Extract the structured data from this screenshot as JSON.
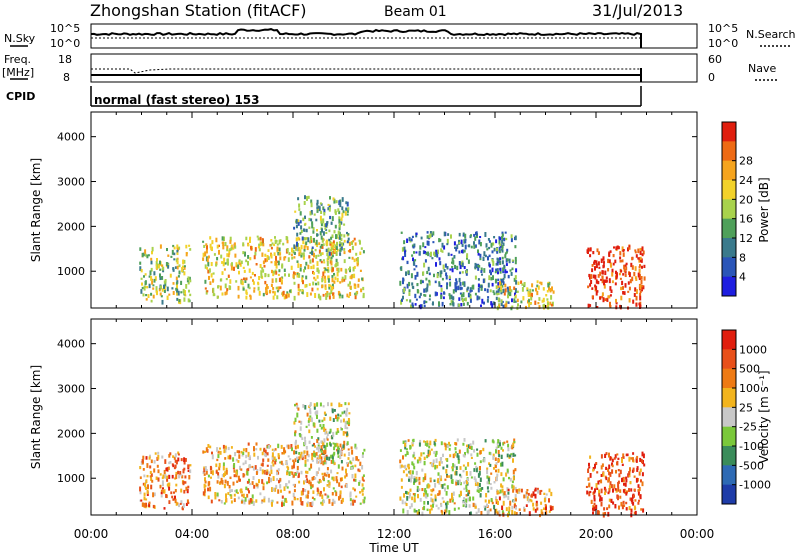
{
  "header": {
    "title": "Zhongshan Station (fitACF)",
    "beam": "Beam 01",
    "date": "31/Jul/2013"
  },
  "summary_panels": {
    "nsky": {
      "label": "N.Sky",
      "tick_top": "10^5",
      "tick_bottom": "10^0"
    },
    "nsearch": {
      "label": "N.Search",
      "tick_top": "10^5",
      "tick_bottom": "10^0"
    },
    "freq": {
      "label": "Freq.",
      "unit": "[MHz]",
      "tick_top": "18",
      "tick_bottom": "8"
    },
    "nave": {
      "label": "Nave",
      "tick_top": "60",
      "tick_bottom": "0"
    },
    "cpid": {
      "label": "CPID",
      "text": "normal (fast stereo) 153"
    }
  },
  "chart_data": [
    {
      "type": "heatmap",
      "name": "power",
      "ylabel": "Slant Range [km]",
      "ylim": [
        180,
        4550
      ],
      "yticks": [
        1000,
        2000,
        3000,
        4000
      ],
      "xlabel": "Time UT",
      "xlim": [
        0,
        24
      ],
      "xticks": [
        "00:00",
        "04:00",
        "08:00",
        "12:00",
        "16:00",
        "20:00",
        "00:00"
      ],
      "colorbar": {
        "label": "Power [dB]",
        "ticks": [
          "4",
          "8",
          "12",
          "16",
          "20",
          "24",
          "28"
        ],
        "colors": [
          "#1e1ee0",
          "#2a55b8",
          "#3a7a8c",
          "#4fa05a",
          "#a8d24c",
          "#f2d22a",
          "#f5a41e",
          "#ee6a14",
          "#e01e0e"
        ]
      },
      "regions": [
        {
          "t0": 1.9,
          "t1": 3.9,
          "r0": 350,
          "r1": 1600,
          "level": 4
        },
        {
          "t0": 4.4,
          "t1": 10.8,
          "r0": 450,
          "r1": 1800,
          "level": 5
        },
        {
          "t0": 8.0,
          "t1": 10.2,
          "r0": 1400,
          "r1": 2700,
          "level": 3
        },
        {
          "t0": 12.2,
          "t1": 16.8,
          "r0": 250,
          "r1": 1900,
          "level": 2
        },
        {
          "t0": 16.0,
          "t1": 18.3,
          "r0": 200,
          "r1": 800,
          "level": 5
        },
        {
          "t0": 19.6,
          "t1": 21.9,
          "r0": 200,
          "r1": 1600,
          "level": 8
        }
      ]
    },
    {
      "type": "heatmap",
      "name": "velocity",
      "ylabel": "Slant Range [km]",
      "ylim": [
        180,
        4550
      ],
      "yticks": [
        1000,
        2000,
        3000,
        4000
      ],
      "xlabel": "Time UT",
      "xlim": [
        0,
        24
      ],
      "xticks": [
        "00:00",
        "04:00",
        "08:00",
        "12:00",
        "16:00",
        "20:00",
        "00:00"
      ],
      "colorbar": {
        "label": "Velocity [m s⁻¹]",
        "ticks": [
          "1000",
          "500",
          "100",
          "25",
          "-25",
          "-100",
          "-500",
          "-1000"
        ],
        "colors": [
          "#1e3ca8",
          "#2e6ab4",
          "#3a8c5a",
          "#7ac83a",
          "#c8c8c8",
          "#f2b41e",
          "#ee7a14",
          "#e8501a",
          "#e01e0e"
        ]
      },
      "regions": [
        {
          "t0": 1.9,
          "t1": 3.9,
          "r0": 350,
          "r1": 1600,
          "level": 6
        },
        {
          "t0": 4.4,
          "t1": 10.8,
          "r0": 450,
          "r1": 1800,
          "level": 5
        },
        {
          "t0": 8.0,
          "t1": 10.2,
          "r0": 1400,
          "r1": 2700,
          "level": 4
        },
        {
          "t0": 12.2,
          "t1": 16.8,
          "r0": 250,
          "r1": 1900,
          "level": 4
        },
        {
          "t0": 16.0,
          "t1": 18.3,
          "r0": 200,
          "r1": 800,
          "level": 6
        },
        {
          "t0": 19.6,
          "t1": 21.9,
          "r0": 200,
          "r1": 1600,
          "level": 7
        }
      ]
    }
  ]
}
